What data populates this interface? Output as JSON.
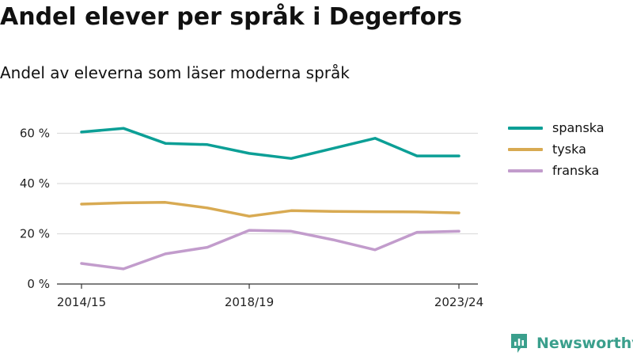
{
  "title": "Andel elever per språk i Degerfors",
  "subtitle": "Andel av eleverna som läser moderna språk",
  "colors": {
    "spanska": "#0c9f96",
    "tyska": "#d8aa52",
    "franska": "#c29ccc",
    "grid": "#dddddd",
    "axis": "#333333",
    "brand": "#3a9f8c"
  },
  "brand": {
    "name": "Newsworthy",
    "icon": "bar-chart-logo-icon"
  },
  "chart_data": {
    "type": "line",
    "x": [
      "2014/15",
      "2015/16",
      "2016/17",
      "2017/18",
      "2018/19",
      "2019/20",
      "2020/21",
      "2021/22",
      "2022/23",
      "2023/24"
    ],
    "x_tick_labels": [
      "2014/15",
      "2018/19",
      "2023/24"
    ],
    "y_ticks": [
      0,
      20,
      40,
      60
    ],
    "y_tick_labels": [
      "0 %",
      "20 %",
      "40 %",
      "60 %"
    ],
    "ylim": [
      0,
      65
    ],
    "grid": true,
    "legend_position": "right",
    "series": [
      {
        "name": "spanska",
        "values": [
          60.5,
          62,
          56,
          55.5,
          52,
          50,
          54,
          58,
          51,
          51
        ]
      },
      {
        "name": "tyska",
        "values": [
          31.8,
          32.3,
          32.5,
          30.3,
          27,
          29.2,
          28.9,
          28.8,
          28.7,
          28.3
        ]
      },
      {
        "name": "franska",
        "values": [
          8.2,
          6,
          12,
          14.6,
          21.4,
          21,
          17.6,
          13.6,
          20.6,
          21
        ]
      }
    ]
  }
}
